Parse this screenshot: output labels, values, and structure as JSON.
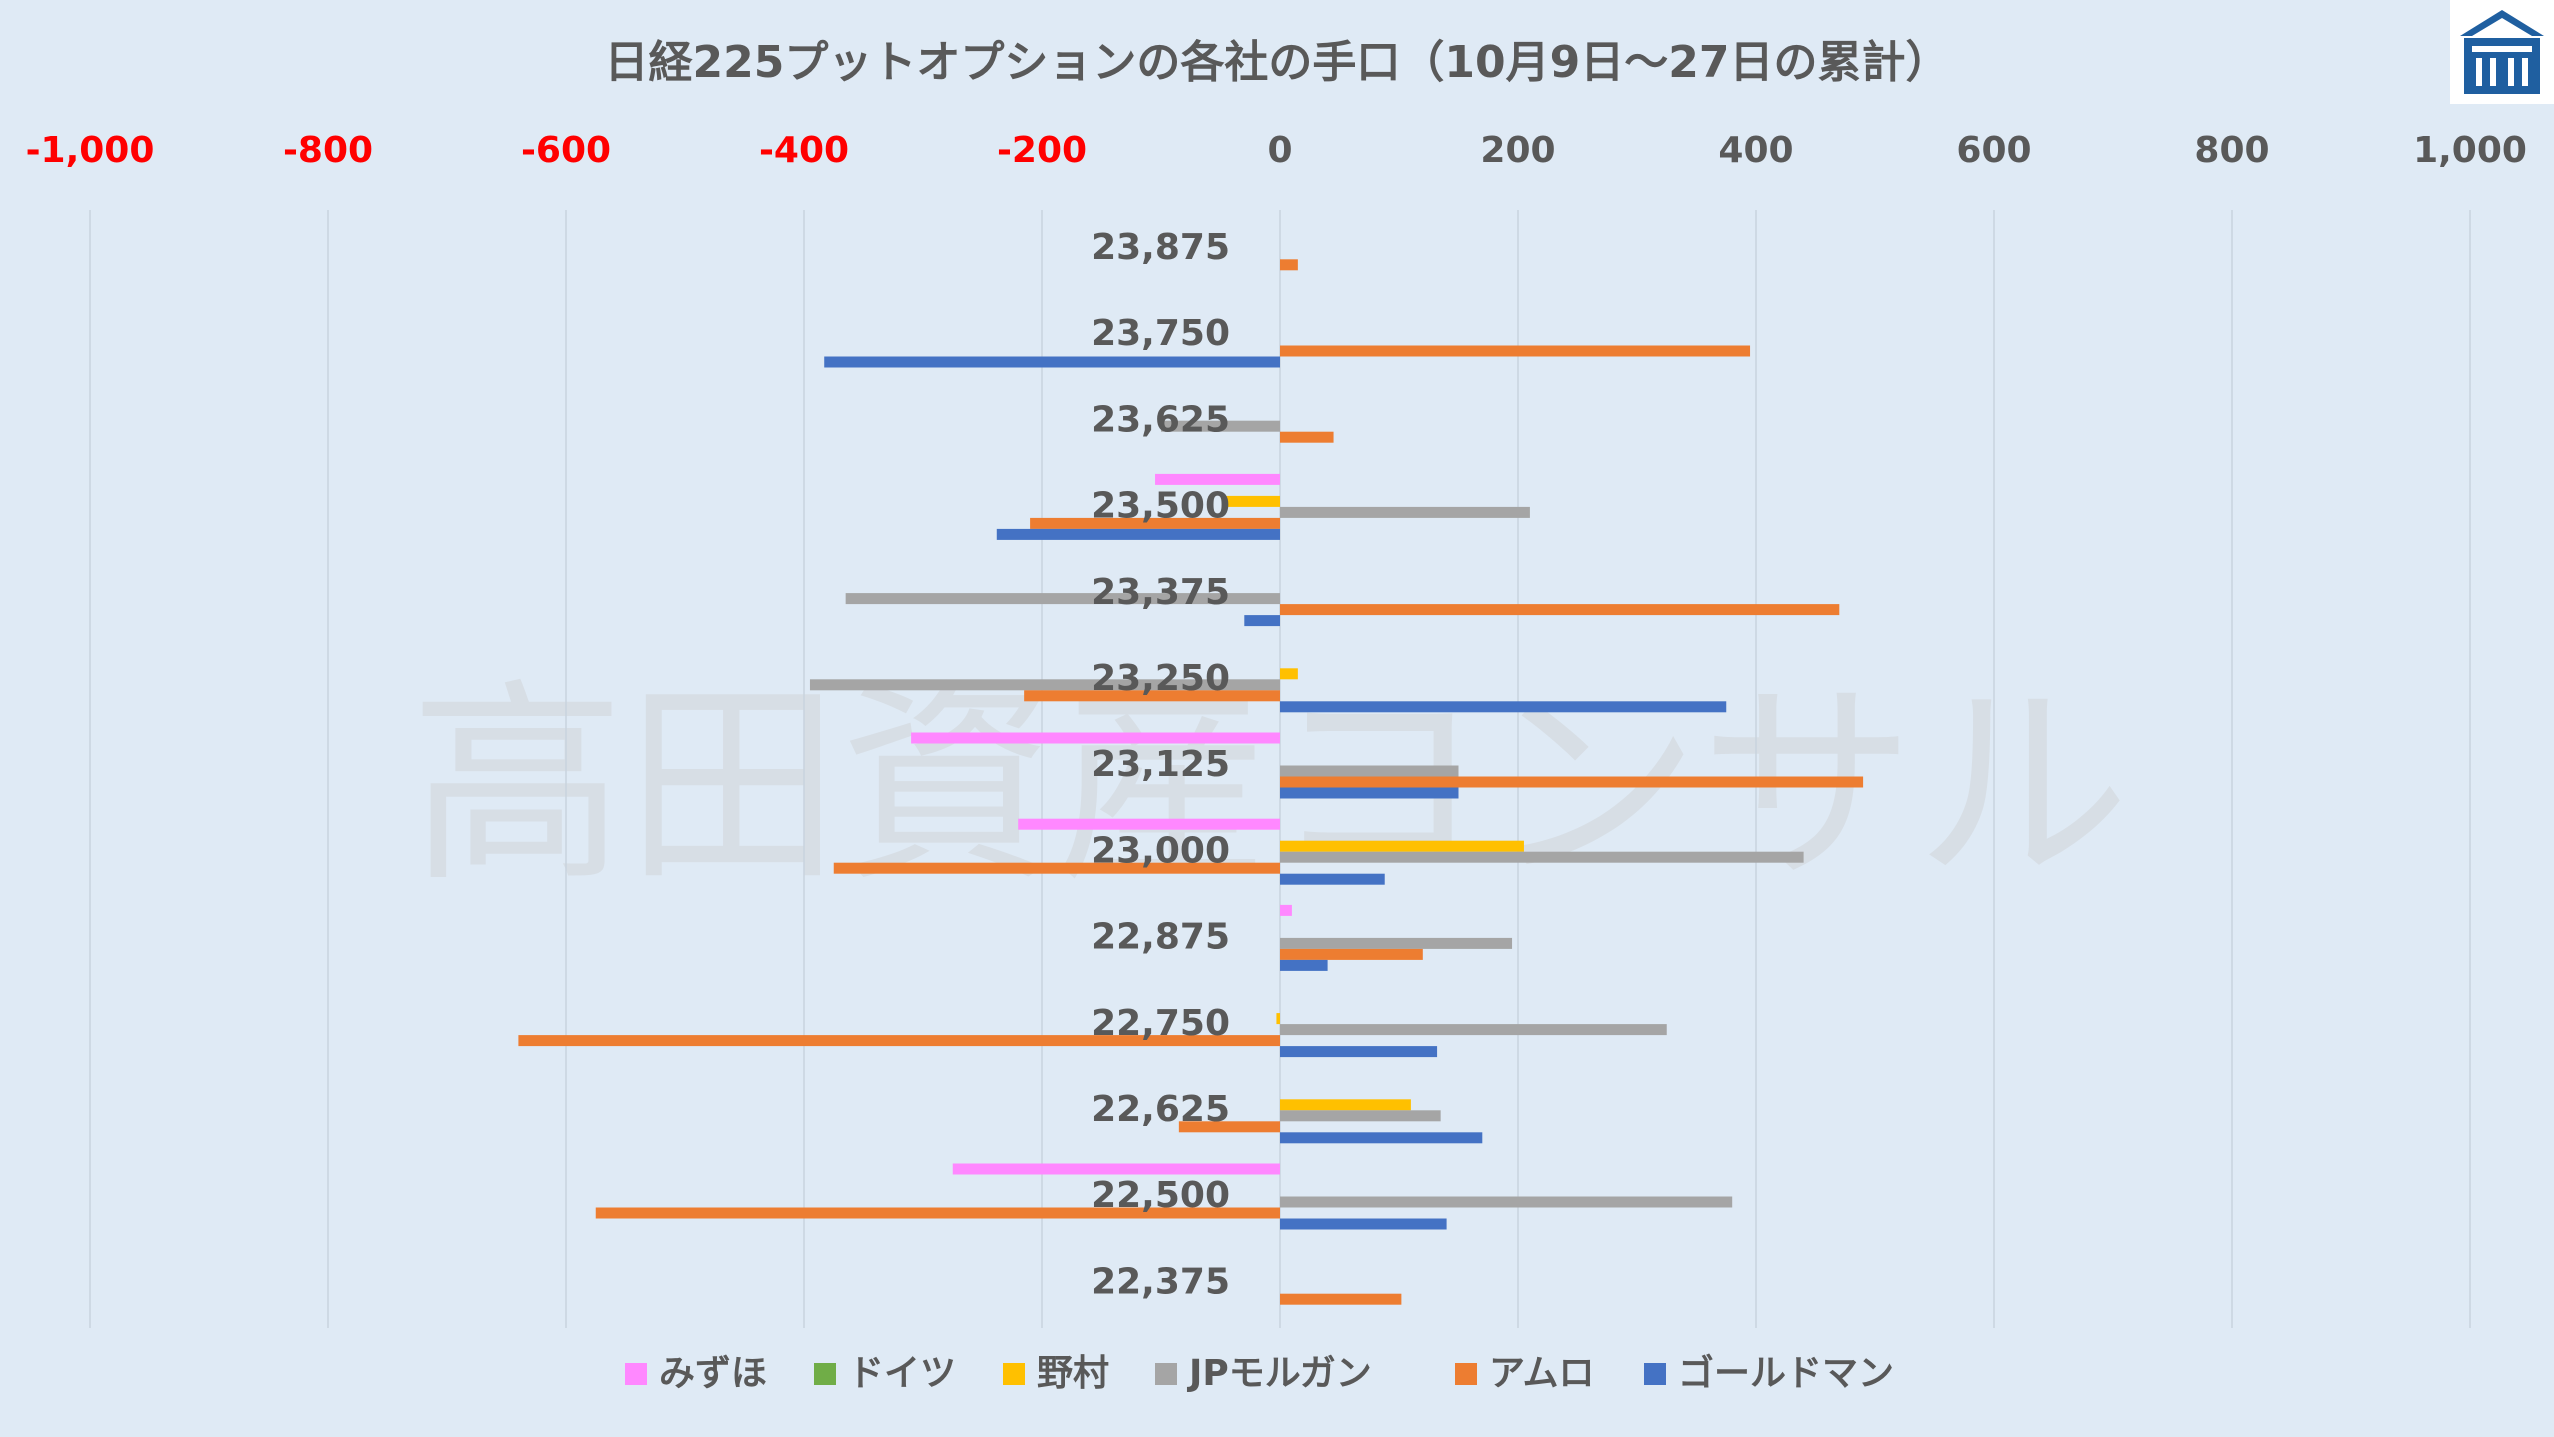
{
  "chart_data": {
    "type": "bar",
    "orientation": "horizontal",
    "title": "日経225プットオプションの各社の手口（10月9日～27日の累計）",
    "xlim": [
      -1000,
      1000
    ],
    "x_ticks": [
      "-1,000",
      "-800",
      "-600",
      "-400",
      "-200",
      "0",
      "200",
      "400",
      "600",
      "800",
      "1,000"
    ],
    "x_tick_values": [
      -1000,
      -800,
      -600,
      -400,
      -200,
      0,
      200,
      400,
      600,
      800,
      1000
    ],
    "negative_tick_color": "#ff0000",
    "positive_tick_color": "#595959",
    "categories": [
      "23,875",
      "23,750",
      "23,625",
      "23,500",
      "23,375",
      "23,250",
      "23,125",
      "23,000",
      "22,875",
      "22,750",
      "22,625",
      "22,500",
      "22,375"
    ],
    "series": [
      {
        "name": "みずほ",
        "color": "#ff88ff",
        "values": [
          0,
          0,
          0,
          -105,
          0,
          0,
          -310,
          -220,
          10,
          0,
          0,
          -275,
          0
        ]
      },
      {
        "name": "ドイツ",
        "color": "#70ad47",
        "values": [
          0,
          0,
          0,
          0,
          0,
          0,
          0,
          0,
          0,
          0,
          0,
          0,
          0
        ]
      },
      {
        "name": "野村",
        "color": "#ffc000",
        "values": [
          0,
          0,
          0,
          -45,
          0,
          15,
          0,
          205,
          0,
          -3,
          110,
          0,
          0
        ]
      },
      {
        "name": "JPモルガン",
        "color": "#a5a5a5",
        "values": [
          0,
          0,
          -100,
          210,
          -365,
          -395,
          150,
          440,
          195,
          325,
          135,
          380,
          0
        ]
      },
      {
        "name": "アムロ",
        "color": "#ed7d31",
        "values": [
          15,
          395,
          45,
          -210,
          470,
          -215,
          490,
          -375,
          120,
          -640,
          -85,
          -575,
          102
        ]
      },
      {
        "name": "ゴールドマン",
        "color": "#4472c4",
        "values": [
          0,
          -383,
          0,
          -238,
          -30,
          375,
          150,
          88,
          40,
          132,
          170,
          140,
          0
        ]
      }
    ],
    "legend_position": "bottom",
    "grid": true,
    "watermark": "高田資産コンサル"
  },
  "logo": {
    "name": "logo-icon",
    "color": "#1f5fa0"
  }
}
